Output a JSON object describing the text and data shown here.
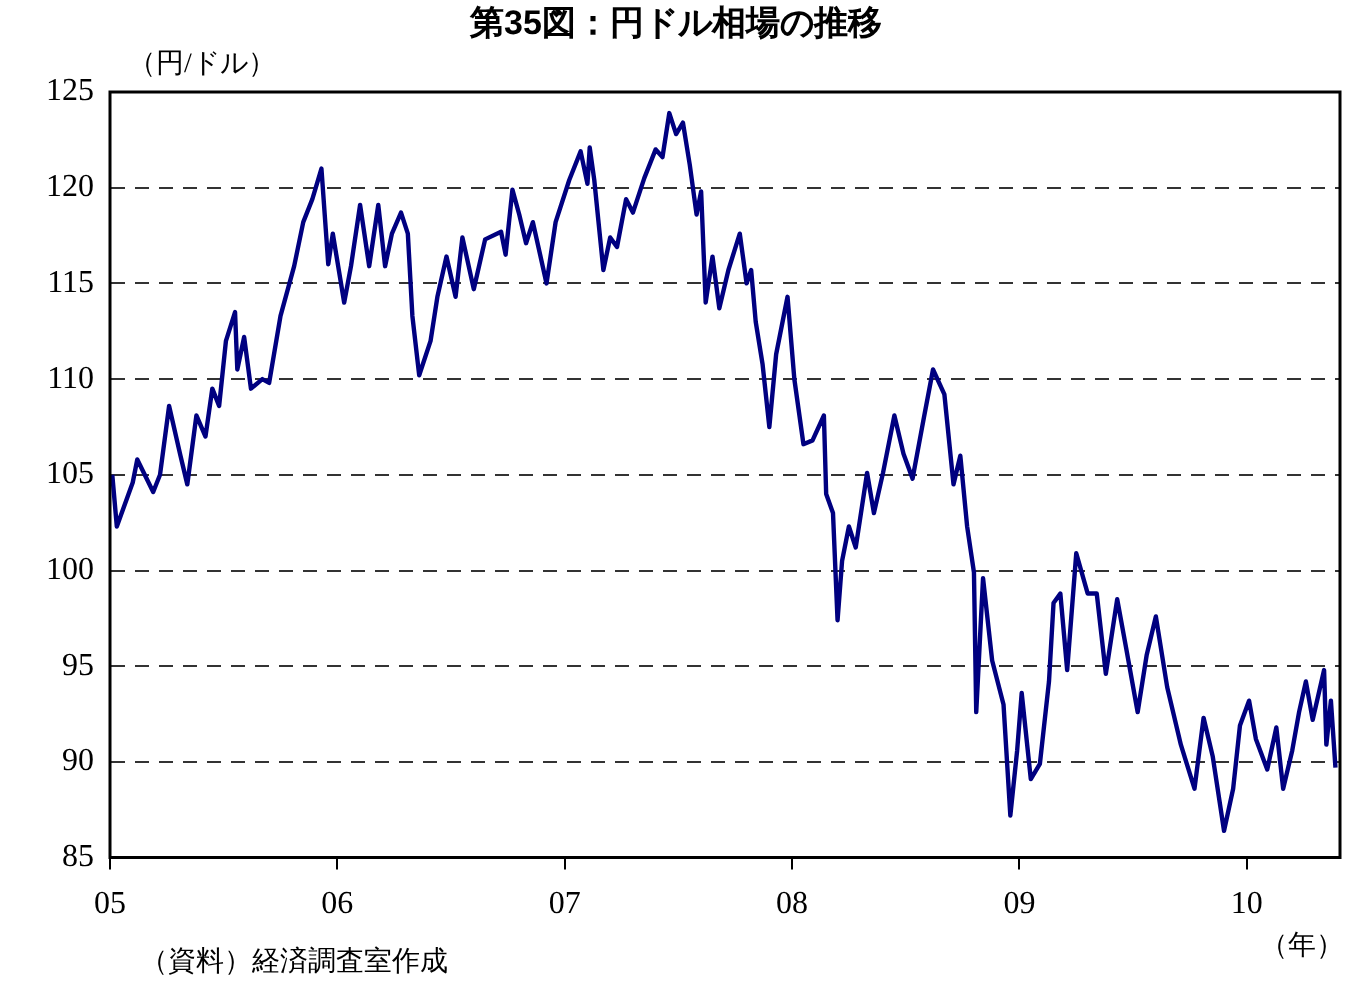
{
  "chart_data": {
    "type": "line",
    "title": "第35図：円ドル相場の推移",
    "ylabel": "（円/ドル）",
    "xlabel": "（年）",
    "annotations": [
      "（資料）経済調査室作成"
    ],
    "color": "#000080",
    "grid": "y",
    "xlim": [
      2005,
      2010.41
    ],
    "ylim": [
      85,
      125
    ],
    "xticks": [
      {
        "value": 2005,
        "label": "05"
      },
      {
        "value": 2006,
        "label": "06"
      },
      {
        "value": 2007,
        "label": "07"
      },
      {
        "value": 2008,
        "label": "08"
      },
      {
        "value": 2009,
        "label": "09"
      },
      {
        "value": 2010,
        "label": "10"
      }
    ],
    "yticks": [
      85,
      90,
      95,
      100,
      105,
      110,
      115,
      120,
      125
    ],
    "x": [
      2005.01,
      2005.03,
      2005.1,
      2005.12,
      2005.19,
      2005.22,
      2005.26,
      2005.31,
      2005.34,
      2005.38,
      2005.42,
      2005.45,
      2005.48,
      2005.51,
      2005.55,
      2005.56,
      2005.59,
      2005.62,
      2005.67,
      2005.7,
      2005.75,
      2005.81,
      2005.85,
      2005.89,
      2005.93,
      2005.96,
      2005.98,
      2006.03,
      2006.06,
      2006.1,
      2006.14,
      2006.18,
      2006.21,
      2006.24,
      2006.28,
      2006.31,
      2006.33,
      2006.36,
      2006.41,
      2006.44,
      2006.48,
      2006.52,
      2006.55,
      2006.6,
      2006.65,
      2006.72,
      2006.74,
      2006.77,
      2006.8,
      2006.83,
      2006.86,
      2006.92,
      2006.96,
      2007.02,
      2007.07,
      2007.1,
      2007.11,
      2007.13,
      2007.17,
      2007.2,
      2007.23,
      2007.27,
      2007.3,
      2007.35,
      2007.4,
      2007.43,
      2007.46,
      2007.49,
      2007.52,
      2007.55,
      2007.58,
      2007.6,
      2007.62,
      2007.65,
      2007.68,
      2007.72,
      2007.77,
      2007.8,
      2007.82,
      2007.84,
      2007.87,
      2007.9,
      2007.93,
      2007.98,
      2008.01,
      2008.05,
      2008.09,
      2008.14,
      2008.15,
      2008.18,
      2008.2,
      2008.22,
      2008.25,
      2008.28,
      2008.33,
      2008.36,
      2008.4,
      2008.45,
      2008.49,
      2008.53,
      2008.58,
      2008.62,
      2008.67,
      2008.71,
      2008.74,
      2008.77,
      2008.8,
      2008.81,
      2008.84,
      2008.88,
      2008.93,
      2008.96,
      2008.99,
      2009.01,
      2009.05,
      2009.09,
      2009.13,
      2009.15,
      2009.18,
      2009.21,
      2009.25,
      2009.3,
      2009.34,
      2009.38,
      2009.43,
      2009.47,
      2009.52,
      2009.56,
      2009.6,
      2009.65,
      2009.71,
      2009.77,
      2009.81,
      2009.85,
      2009.9,
      2009.94,
      2009.97,
      2010.01,
      2010.04,
      2010.09,
      2010.13,
      2010.16,
      2010.2,
      2010.23,
      2010.26,
      2010.29,
      2010.34,
      2010.35,
      2010.37,
      2010.39
    ],
    "values": [
      105.0,
      102.3,
      104.6,
      105.8,
      104.1,
      105.0,
      108.6,
      106.0,
      104.5,
      108.1,
      107.0,
      109.5,
      108.6,
      112.0,
      113.5,
      110.5,
      112.2,
      109.5,
      110.0,
      109.8,
      113.3,
      115.9,
      118.2,
      119.4,
      121.0,
      116.0,
      117.6,
      114.0,
      115.9,
      119.1,
      115.9,
      119.1,
      115.9,
      117.6,
      118.7,
      117.6,
      113.3,
      110.2,
      112.0,
      114.3,
      116.4,
      114.3,
      117.4,
      114.7,
      117.3,
      117.7,
      116.5,
      119.9,
      118.6,
      117.1,
      118.2,
      115.0,
      118.2,
      120.4,
      121.9,
      120.2,
      122.1,
      120.4,
      115.7,
      117.4,
      116.9,
      119.4,
      118.7,
      120.5,
      122.0,
      121.6,
      123.9,
      122.8,
      123.4,
      121.2,
      118.6,
      119.8,
      114.0,
      116.4,
      113.7,
      115.7,
      117.6,
      115.0,
      115.7,
      113.0,
      110.8,
      107.5,
      111.3,
      114.3,
      110.0,
      106.6,
      106.8,
      108.1,
      104.0,
      103.0,
      97.4,
      100.5,
      102.3,
      101.2,
      105.1,
      103.0,
      105.1,
      108.1,
      106.1,
      104.8,
      108.0,
      110.5,
      109.2,
      104.5,
      106.0,
      102.3,
      99.9,
      92.6,
      99.6,
      95.3,
      93.0,
      87.2,
      90.6,
      93.6,
      89.1,
      89.9,
      94.2,
      98.3,
      98.8,
      94.8,
      100.9,
      98.8,
      98.8,
      94.6,
      98.5,
      95.9,
      92.6,
      95.6,
      97.6,
      93.9,
      90.9,
      88.6,
      92.3,
      90.3,
      86.4,
      88.6,
      91.9,
      93.2,
      91.2,
      89.6,
      91.8,
      88.6,
      90.6,
      92.6,
      94.2,
      92.2,
      94.8,
      90.9,
      93.2,
      89.7
    ]
  }
}
